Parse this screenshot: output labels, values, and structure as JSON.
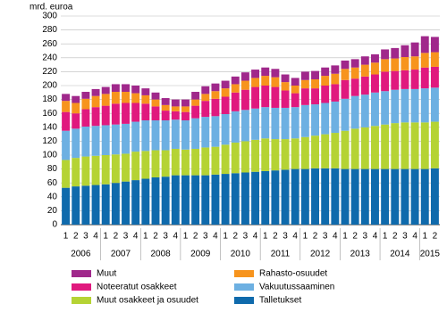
{
  "chart_data": {
    "type": "stacked-bar",
    "y_label": "mrd. euroa",
    "categories": [
      "1",
      "2",
      "3",
      "4",
      "1",
      "2",
      "3",
      "4",
      "1",
      "2",
      "3",
      "4",
      "1",
      "2",
      "3",
      "4",
      "1",
      "2",
      "3",
      "4",
      "1",
      "2",
      "3",
      "4",
      "1",
      "2",
      "3",
      "4",
      "1",
      "2",
      "3",
      "4",
      "1",
      "2",
      "3",
      "4",
      "1",
      "2"
    ],
    "years": [
      "2006",
      "2007",
      "2008",
      "2009",
      "2010",
      "2011",
      "2012",
      "2013",
      "2014",
      "2015"
    ],
    "ylim": [
      0,
      300
    ],
    "yticks": [
      0,
      20,
      40,
      60,
      80,
      100,
      120,
      140,
      160,
      180,
      200,
      220,
      240,
      260,
      280,
      300
    ],
    "grid": true,
    "series": [
      {
        "name": "Talletukset",
        "color": "#0f6aac",
        "values": [
          53,
          55,
          56,
          57,
          58,
          60,
          62,
          64,
          66,
          68,
          69,
          71,
          71,
          71,
          71,
          72,
          73,
          74,
          75,
          76,
          77,
          78,
          79,
          80,
          80,
          81,
          81,
          81,
          80,
          80,
          80,
          80,
          80,
          80,
          80,
          80,
          80,
          81
        ]
      },
      {
        "name": "Muut osakkeet ja osuudet",
        "color": "#b5d334",
        "values": [
          40,
          41,
          42,
          42,
          42,
          41,
          40,
          41,
          40,
          39,
          38,
          38,
          37,
          38,
          40,
          40,
          42,
          44,
          45,
          46,
          47,
          45,
          44,
          44,
          46,
          47,
          49,
          51,
          55,
          58,
          60,
          62,
          64,
          66,
          67,
          67,
          67,
          67
        ]
      },
      {
        "name": "Vakuutussaaminen",
        "color": "#6db0e2",
        "values": [
          42,
          42,
          43,
          43,
          43,
          43,
          43,
          43,
          44,
          43,
          43,
          42,
          42,
          44,
          44,
          44,
          44,
          45,
          45,
          45,
          45,
          45,
          45,
          45,
          46,
          45,
          45,
          45,
          46,
          47,
          47,
          48,
          48,
          48,
          48,
          48,
          49,
          49
        ]
      },
      {
        "name": "Noteeratut osakkeet",
        "color": "#e0197e",
        "values": [
          27,
          22,
          25,
          27,
          28,
          30,
          30,
          27,
          24,
          20,
          14,
          12,
          12,
          18,
          23,
          25,
          25,
          27,
          29,
          31,
          31,
          30,
          25,
          20,
          24,
          23,
          25,
          25,
          27,
          25,
          26,
          26,
          28,
          27,
          27,
          28,
          30,
          30
        ]
      },
      {
        "name": "Rahasto-osuudet",
        "color": "#f7941d",
        "values": [
          16,
          15,
          15,
          16,
          17,
          17,
          16,
          14,
          12,
          10,
          8,
          7,
          8,
          9,
          10,
          11,
          12,
          12,
          13,
          13,
          14,
          14,
          12,
          11,
          12,
          13,
          14,
          15,
          16,
          16,
          17,
          17,
          18,
          18,
          19,
          19,
          21,
          21
        ]
      },
      {
        "name": "Muut",
        "color": "#a0288b",
        "values": [
          10,
          10,
          10,
          10,
          10,
          11,
          11,
          11,
          10,
          10,
          10,
          10,
          10,
          11,
          11,
          11,
          11,
          11,
          12,
          12,
          12,
          12,
          11,
          11,
          12,
          12,
          12,
          12,
          12,
          12,
          12,
          12,
          14,
          15,
          17,
          20,
          24,
          22
        ]
      }
    ]
  }
}
